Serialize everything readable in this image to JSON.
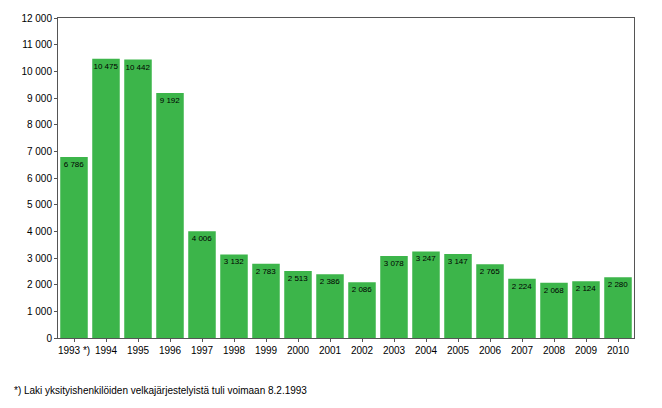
{
  "chart_data": {
    "type": "bar",
    "categories": [
      "1993 *)",
      "1994",
      "1995",
      "1996",
      "1997",
      "1998",
      "1999",
      "2000",
      "2001",
      "2002",
      "2003",
      "2004",
      "2005",
      "2006",
      "2007",
      "2008",
      "2009",
      "2010"
    ],
    "values": [
      6786,
      10475,
      10442,
      9192,
      4006,
      3132,
      2783,
      2513,
      2386,
      2086,
      3078,
      3247,
      3147,
      2765,
      2224,
      2068,
      2124,
      2280
    ],
    "value_labels": [
      "6 786",
      "10 475",
      "10 442",
      "9 192",
      "4 006",
      "3 132",
      "2 783",
      "2 513",
      "2 386",
      "2 086",
      "3 078",
      "3 247",
      "3 147",
      "2 765",
      "2 224",
      "2 068",
      "2 124",
      "2 280"
    ],
    "color": "#3cb54a",
    "data_labels": true,
    "grid": false,
    "ylim": [
      0,
      12000
    ],
    "yticks": [
      0,
      {
        "value": 1000,
        "label": "1 000"
      },
      {
        "value": 2000,
        "label": "2 000"
      },
      {
        "value": 3000,
        "label": "3 000"
      },
      {
        "value": 4000,
        "label": "4 000"
      },
      {
        "value": 5000,
        "label": "5 000"
      },
      {
        "value": 6000,
        "label": "6 000"
      },
      {
        "value": 7000,
        "label": "7 000"
      },
      {
        "value": 8000,
        "label": "8 000"
      },
      {
        "value": 9000,
        "label": "9 000"
      },
      {
        "value": 10000,
        "label": "10 000"
      },
      {
        "value": 11000,
        "label": "11 000"
      },
      {
        "value": 12000,
        "label": "12 000"
      }
    ],
    "annotations": [
      "*) Laki yksityishenkilöiden velkajärjestelyistä tuli voimaan 8.2.1993"
    ]
  }
}
